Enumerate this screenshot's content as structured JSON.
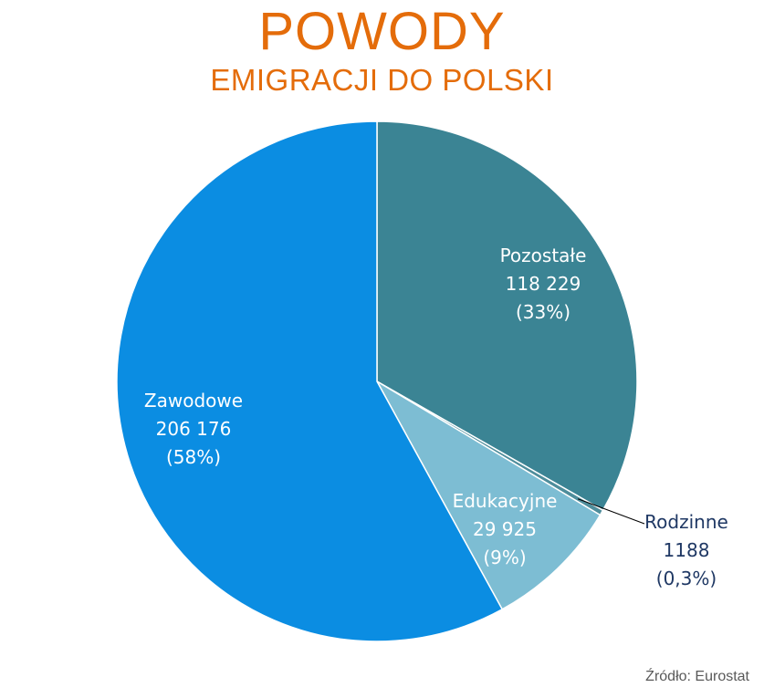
{
  "title": "POWODY",
  "subtitle": "EMIGRACJI DO POLSKI",
  "source": "Źródło: Eurostat",
  "colors": {
    "title": "#e46c0a",
    "Zawodowe": "#0b8de2",
    "Pozostałe": "#3b8494",
    "Edukacyjne": "#7dbdd3",
    "Rodzinne": "#4e8d9b",
    "label_inside": "#ffffff",
    "label_outside": "#1f3864"
  },
  "chart_data": {
    "type": "pie",
    "start_angle_deg": 0,
    "direction": "clockwise",
    "slices": [
      {
        "name": "Pozostałe",
        "value": 118229,
        "value_label": "118 229",
        "percent_label": "(33%)",
        "label_position": "inside"
      },
      {
        "name": "Rodzinne",
        "value": 1188,
        "value_label": "1188",
        "percent_label": "(0,3%)",
        "label_position": "outside"
      },
      {
        "name": "Edukacyjne",
        "value": 29925,
        "value_label": "29 925",
        "percent_label": "(9%)",
        "label_position": "inside"
      },
      {
        "name": "Zawodowe",
        "value": 206176,
        "value_label": "206 176",
        "percent_label": "(58%)",
        "label_position": "inside"
      }
    ]
  }
}
